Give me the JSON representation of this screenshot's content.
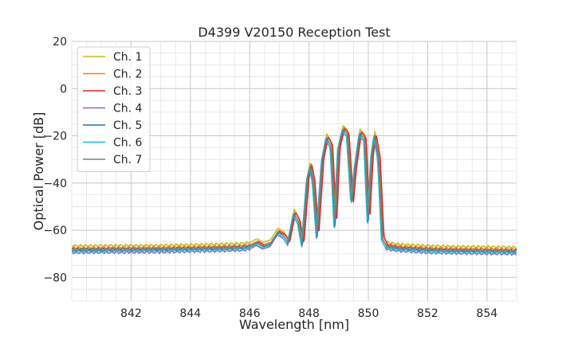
{
  "chart_data": {
    "type": "line",
    "title": "D4399 V20150 Reception Test",
    "xlabel": "Wavelength [nm]",
    "ylabel": "Optical Power [dB]",
    "xlim": [
      840,
      855
    ],
    "ylim": [
      -90,
      20
    ],
    "xticks": [
      842,
      844,
      846,
      848,
      850,
      852,
      854
    ],
    "yticks": [
      20,
      0,
      -20,
      -40,
      -60,
      -80
    ],
    "xminor_step": 0.5,
    "yminor_step": 5,
    "grid": true,
    "legend_position": "top-left",
    "spectrum_template": [
      [
        840.0,
        -67.0
      ],
      [
        843.0,
        -66.8
      ],
      [
        845.0,
        -66.3
      ],
      [
        845.8,
        -66.0
      ],
      [
        846.0,
        -65.6
      ],
      [
        846.25,
        -64.0
      ],
      [
        846.45,
        -65.5
      ],
      [
        846.7,
        -64.5
      ],
      [
        846.95,
        -59.5
      ],
      [
        847.15,
        -61.0
      ],
      [
        847.3,
        -64.0
      ],
      [
        847.5,
        -51.5
      ],
      [
        847.65,
        -55.0
      ],
      [
        847.78,
        -64.5
      ],
      [
        847.95,
        -37.0
      ],
      [
        848.05,
        -31.5
      ],
      [
        848.15,
        -38.0
      ],
      [
        848.28,
        -61.0
      ],
      [
        848.45,
        -29.0
      ],
      [
        848.6,
        -19.5
      ],
      [
        848.75,
        -23.0
      ],
      [
        848.88,
        -56.5
      ],
      [
        849.0,
        -24.0
      ],
      [
        849.15,
        -16.0
      ],
      [
        849.3,
        -18.0
      ],
      [
        849.45,
        -47.0
      ],
      [
        849.55,
        -33.0
      ],
      [
        849.72,
        -17.5
      ],
      [
        849.88,
        -20.0
      ],
      [
        850.0,
        -54.5
      ],
      [
        850.12,
        -27.0
      ],
      [
        850.22,
        -18.5
      ],
      [
        850.35,
        -28.0
      ],
      [
        850.48,
        -62.0
      ],
      [
        850.62,
        -65.5
      ],
      [
        851.0,
        -66.3
      ],
      [
        852.0,
        -67.0
      ],
      [
        853.0,
        -67.3
      ],
      [
        855.0,
        -67.6
      ]
    ],
    "series": [
      {
        "name": "Ch. 1",
        "color": "#bcbd22",
        "offset": 0.4,
        "shift": 0.0
      },
      {
        "name": "Ch. 2",
        "color": "#ff7f0e",
        "offset": -0.5,
        "shift": 0.03
      },
      {
        "name": "Ch. 3",
        "color": "#d62728",
        "offset": -1.0,
        "shift": 0.05
      },
      {
        "name": "Ch. 4",
        "color": "#9467bd",
        "offset": -2.5,
        "shift": -0.02
      },
      {
        "name": "Ch. 5",
        "color": "#1f77b4",
        "offset": -1.5,
        "shift": 0.0
      },
      {
        "name": "Ch. 6",
        "color": "#17becf",
        "offset": -2.0,
        "shift": -0.04
      },
      {
        "name": "Ch. 7",
        "color": "#7f7f7f",
        "offset": -1.2,
        "shift": -0.01
      }
    ]
  }
}
